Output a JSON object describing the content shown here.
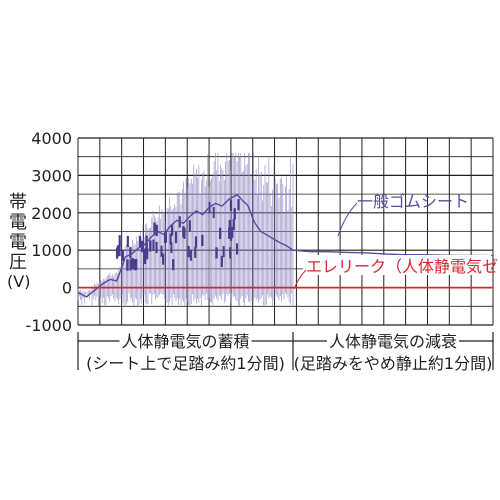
{
  "chart_data": {
    "type": "line",
    "ylabel": [
      "帯",
      "電",
      "電",
      "圧",
      "(V)"
    ],
    "y_ticks": [
      "4000",
      "3000",
      "2000",
      "1000",
      "0",
      "-1000"
    ],
    "ylim": [
      -1000,
      4000
    ],
    "grid": true,
    "series": [
      {
        "name": "一般ゴムシート",
        "color": "#5b4a9b",
        "points": [
          [
            0.0,
            -130
          ],
          [
            0.04,
            -250
          ],
          [
            0.08,
            -60
          ],
          [
            0.12,
            120
          ],
          [
            0.15,
            220
          ],
          [
            0.18,
            180
          ],
          [
            0.2,
            480
          ],
          [
            0.22,
            820
          ],
          [
            0.25,
            900
          ],
          [
            0.28,
            1050
          ],
          [
            0.31,
            1150
          ],
          [
            0.34,
            1350
          ],
          [
            0.37,
            1500
          ],
          [
            0.4,
            1420
          ],
          [
            0.43,
            1650
          ],
          [
            0.46,
            1800
          ],
          [
            0.49,
            1720
          ],
          [
            0.52,
            1900
          ],
          [
            0.55,
            2050
          ],
          [
            0.58,
            1950
          ],
          [
            0.61,
            2150
          ],
          [
            0.64,
            2250
          ],
          [
            0.67,
            2180
          ],
          [
            0.7,
            2350
          ],
          [
            0.72,
            2420
          ],
          [
            0.74,
            2480
          ],
          [
            0.77,
            2300
          ],
          [
            0.79,
            2200
          ],
          [
            0.82,
            1750
          ],
          [
            0.85,
            1500
          ],
          [
            0.88,
            1400
          ],
          [
            0.91,
            1300
          ],
          [
            0.94,
            1200
          ],
          [
            0.97,
            1120
          ],
          [
            1.0,
            1000
          ],
          [
            1.03,
            960
          ],
          [
            1.06,
            960
          ],
          [
            1.09,
            940
          ],
          [
            1.12,
            930
          ],
          [
            1.15,
            900
          ],
          [
            1.18,
            880
          ],
          [
            1.21,
            880
          ],
          [
            1.24,
            870
          ],
          [
            1.27,
            860
          ],
          [
            1.3,
            860
          ],
          [
            1.33,
            855
          ]
        ]
      },
      {
        "name": "エレリーク（人体静電気ゼロ）",
        "color": "#d7262f",
        "points": [
          [
            0.0,
            0
          ],
          [
            1.33,
            0
          ]
        ]
      }
    ],
    "annotations": {
      "rubber": "一般ゴムシート",
      "eleleak": "エレリーク（人体静電気ゼロ）"
    },
    "phases": [
      {
        "title": "人体静電気の蓄積",
        "note": "(シート上で足踏み約1分間)"
      },
      {
        "title": "人体静電気の減衰",
        "note": "(足踏みをやめ静止約1分間)"
      }
    ]
  }
}
